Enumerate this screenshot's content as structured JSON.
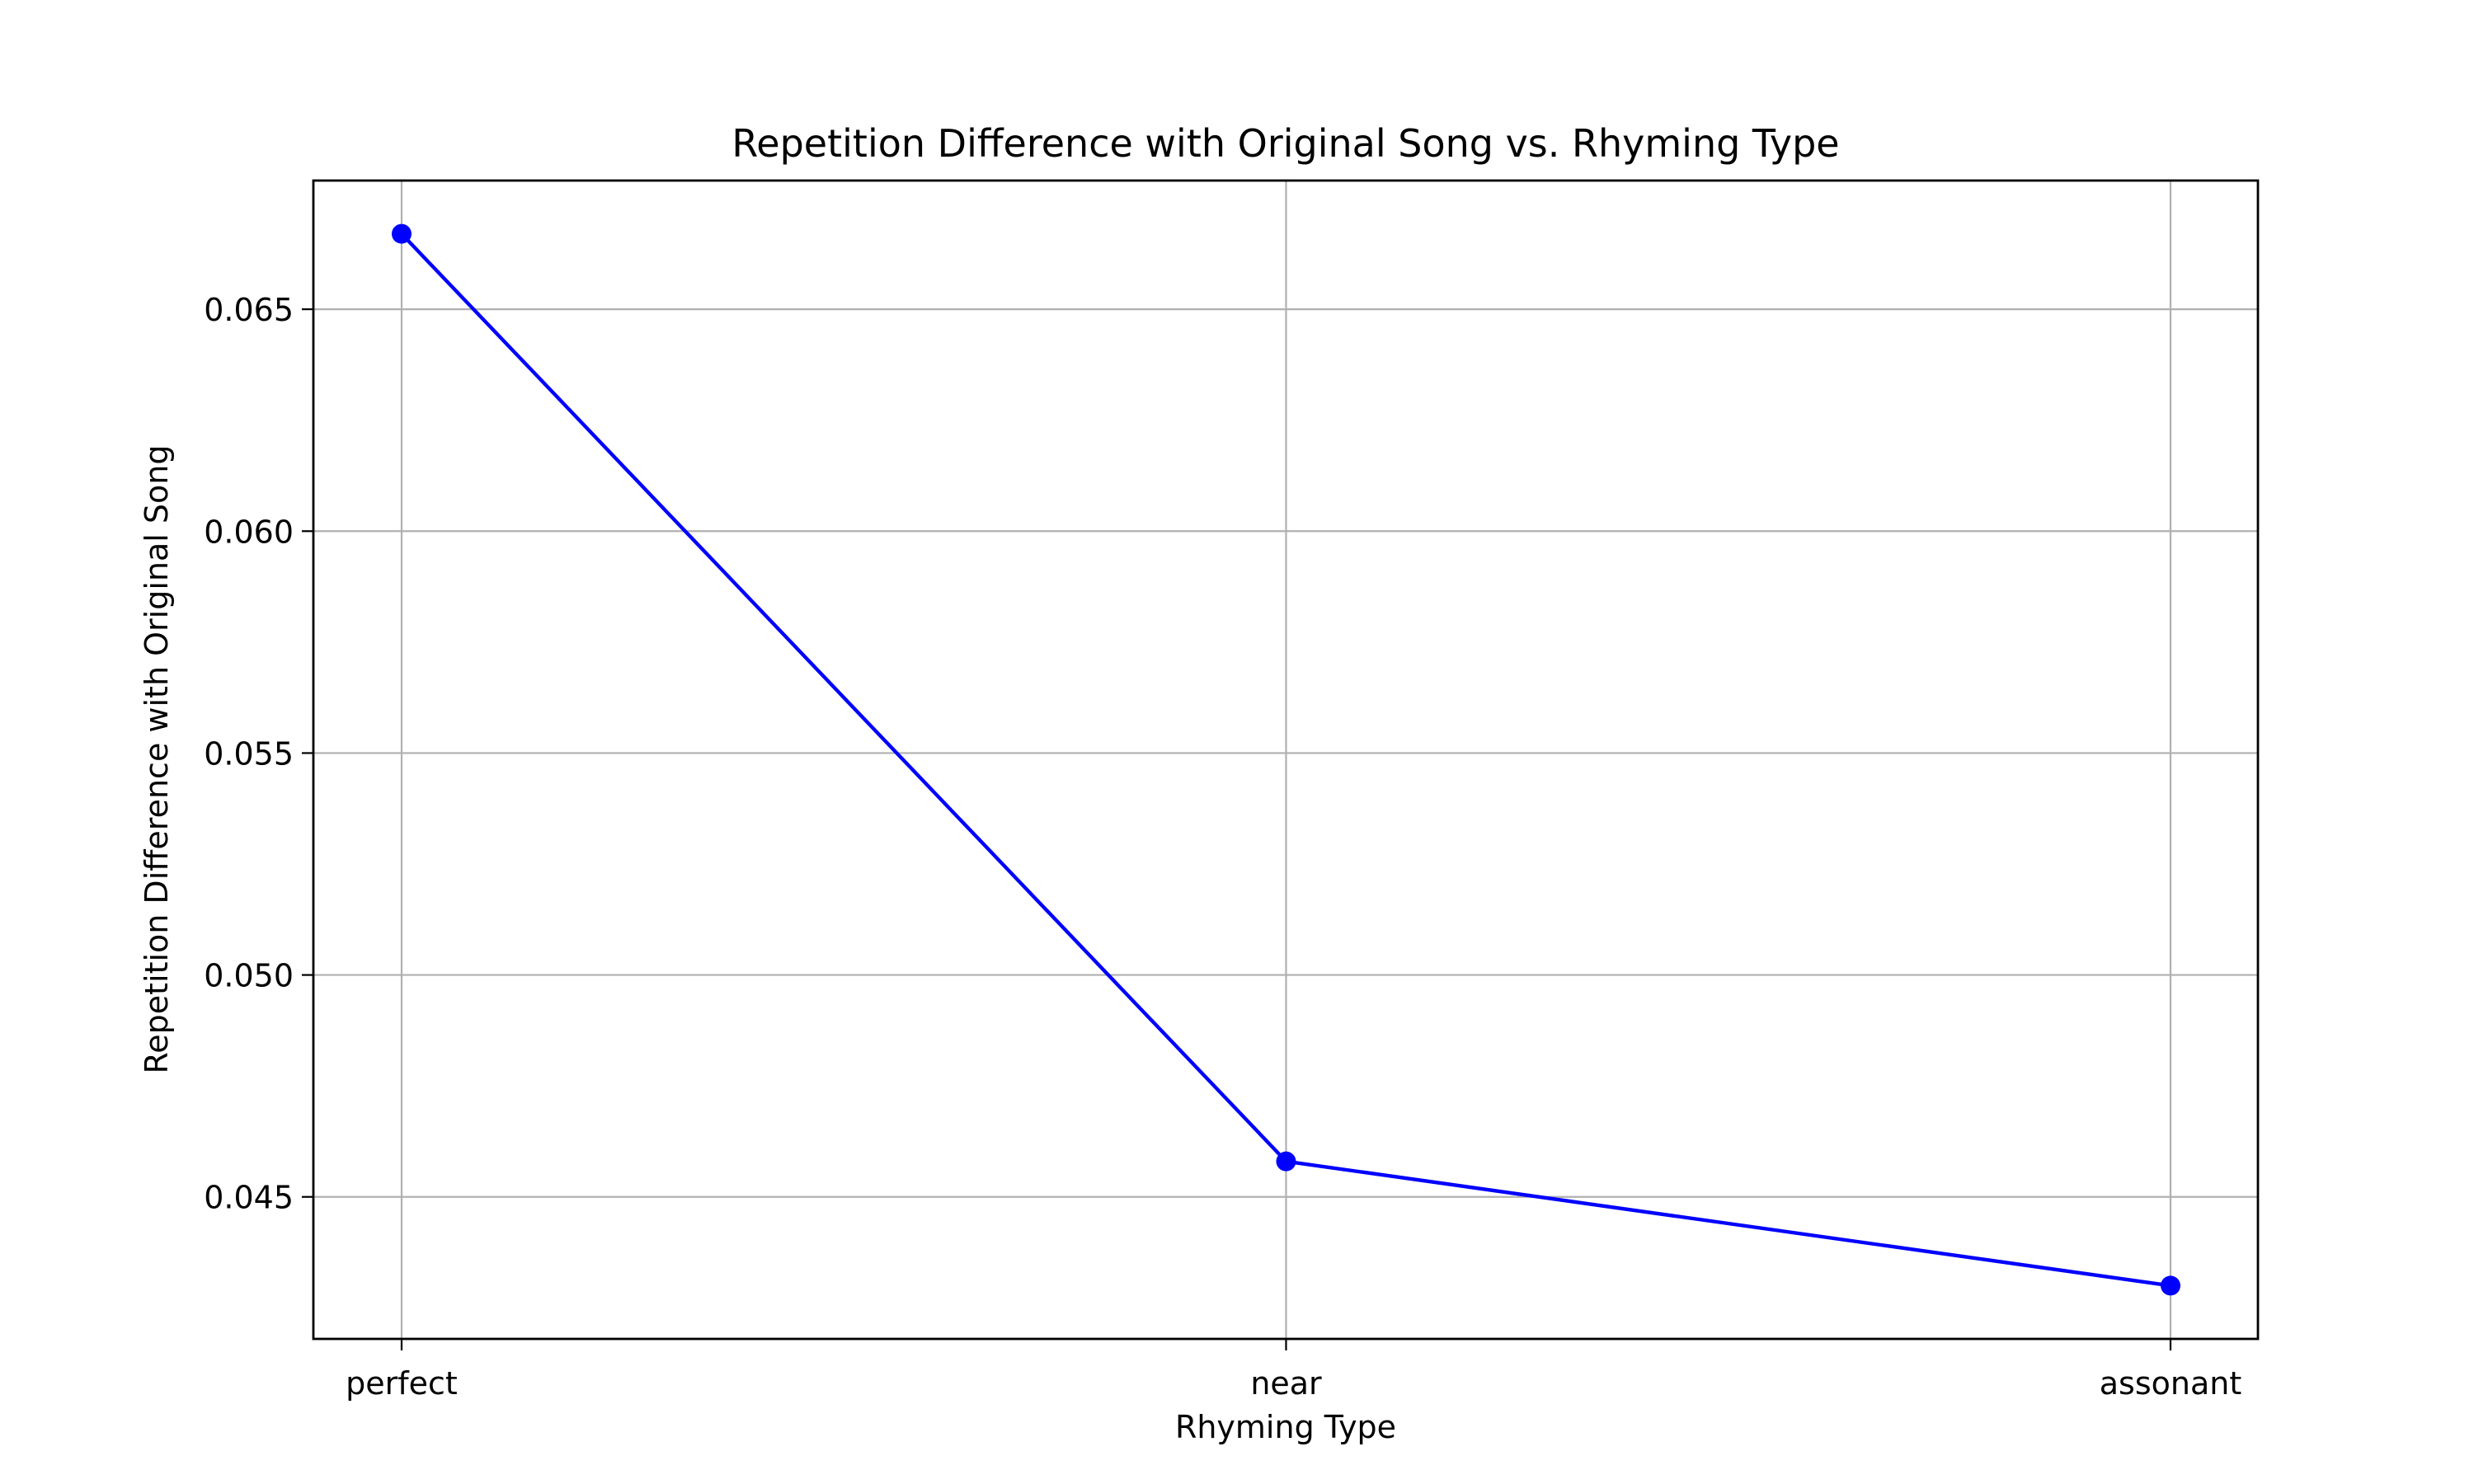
{
  "chart_data": {
    "type": "line",
    "title": "Repetition Difference with Original Song vs. Rhyming Type",
    "xlabel": "Rhyming Type",
    "ylabel": "Repetition Difference with Original Song",
    "categories": [
      "perfect",
      "near",
      "assonant"
    ],
    "series": [
      {
        "values": [
          0.0667,
          0.0458,
          0.043
        ],
        "color": "#0000ff",
        "marker": "circle"
      }
    ],
    "ylim": [
      0.0418,
      0.0679
    ],
    "yticks": [
      0.045,
      0.05,
      0.055,
      0.06,
      0.065
    ],
    "ytick_labels": [
      "0.045",
      "0.050",
      "0.055",
      "0.060",
      "0.065"
    ],
    "grid": true,
    "legend": "none"
  }
}
